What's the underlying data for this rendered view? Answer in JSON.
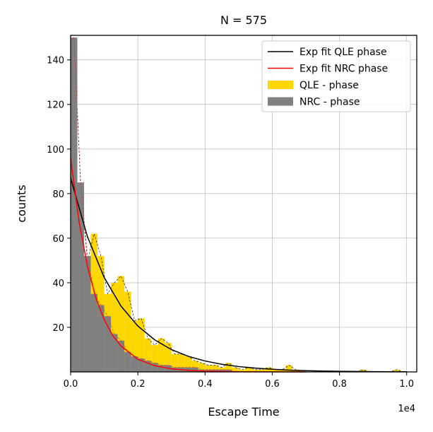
{
  "chart_data": {
    "type": "bar",
    "title": "N = 575",
    "xlabel": "Escape Time",
    "ylabel": "counts",
    "x_offset_text": "1e4",
    "xlim": [
      0,
      1.03
    ],
    "ylim": [
      0,
      151
    ],
    "x_ticks": [
      0.0,
      0.2,
      0.4,
      0.6,
      0.8,
      1.0
    ],
    "x_tick_labels": [
      "0.0",
      "0.2",
      "0.4",
      "0.6",
      "0.8",
      "1.0"
    ],
    "y_ticks": [
      20,
      40,
      60,
      80,
      100,
      120,
      140
    ],
    "y_tick_labels": [
      "20",
      "40",
      "60",
      "80",
      "100",
      "120",
      "140"
    ],
    "grid": true,
    "legend_position": "top-right",
    "bin_width": 0.02,
    "series": [
      {
        "name": "QLE - phase",
        "kind": "histogram",
        "color": "#FFD700",
        "bin_start": 0.0,
        "values": [
          150,
          83,
          50,
          62,
          52,
          35,
          40,
          43,
          36,
          23,
          24,
          15,
          12,
          15,
          13,
          8,
          8,
          7,
          5,
          4,
          3,
          3,
          2,
          4,
          2,
          1,
          2,
          1,
          1,
          2,
          1,
          1,
          3,
          1,
          0,
          0,
          0,
          0,
          0,
          0,
          0,
          0,
          0,
          1,
          0,
          0,
          0,
          0,
          1,
          0
        ]
      },
      {
        "name": "NRC - phase",
        "kind": "histogram",
        "color": "#808080",
        "bin_start": 0.0,
        "values": [
          150,
          85,
          52,
          35,
          30,
          25,
          17,
          14,
          9,
          7,
          6,
          5,
          4,
          3,
          3,
          2,
          2,
          2,
          2,
          1,
          1,
          1,
          1,
          1,
          0,
          0,
          0,
          0,
          0,
          0,
          0,
          0,
          0,
          0,
          0,
          0,
          0,
          0,
          0,
          0,
          0,
          0,
          0,
          0,
          0,
          0,
          0,
          0,
          0,
          0
        ]
      },
      {
        "name": "Exp fit QLE phase",
        "kind": "line",
        "color": "#000000",
        "x": [
          0.0,
          0.05,
          0.1,
          0.15,
          0.2,
          0.25,
          0.3,
          0.35,
          0.4,
          0.45,
          0.5,
          0.55,
          0.6,
          0.65,
          0.7,
          0.75,
          0.8,
          0.85,
          0.9,
          0.95,
          1.0
        ],
        "y": [
          87,
          60.7,
          42.3,
          29.5,
          20.6,
          14.4,
          10.0,
          7.0,
          4.9,
          3.4,
          2.4,
          1.7,
          1.2,
          0.8,
          0.57,
          0.4,
          0.28,
          0.19,
          0.13,
          0.09,
          0.06
        ]
      },
      {
        "name": "Exp fit NRC phase",
        "kind": "line",
        "color": "#FF0000",
        "x": [
          0.0,
          0.025,
          0.05,
          0.075,
          0.1,
          0.125,
          0.15,
          0.2,
          0.25,
          0.3,
          0.35,
          0.4,
          0.5,
          0.6,
          0.7
        ],
        "y": [
          96,
          67.5,
          47.4,
          33.3,
          23.4,
          16.4,
          11.6,
          5.7,
          2.8,
          1.4,
          0.7,
          0.34,
          0.08,
          0.02,
          0.005
        ]
      }
    ]
  }
}
